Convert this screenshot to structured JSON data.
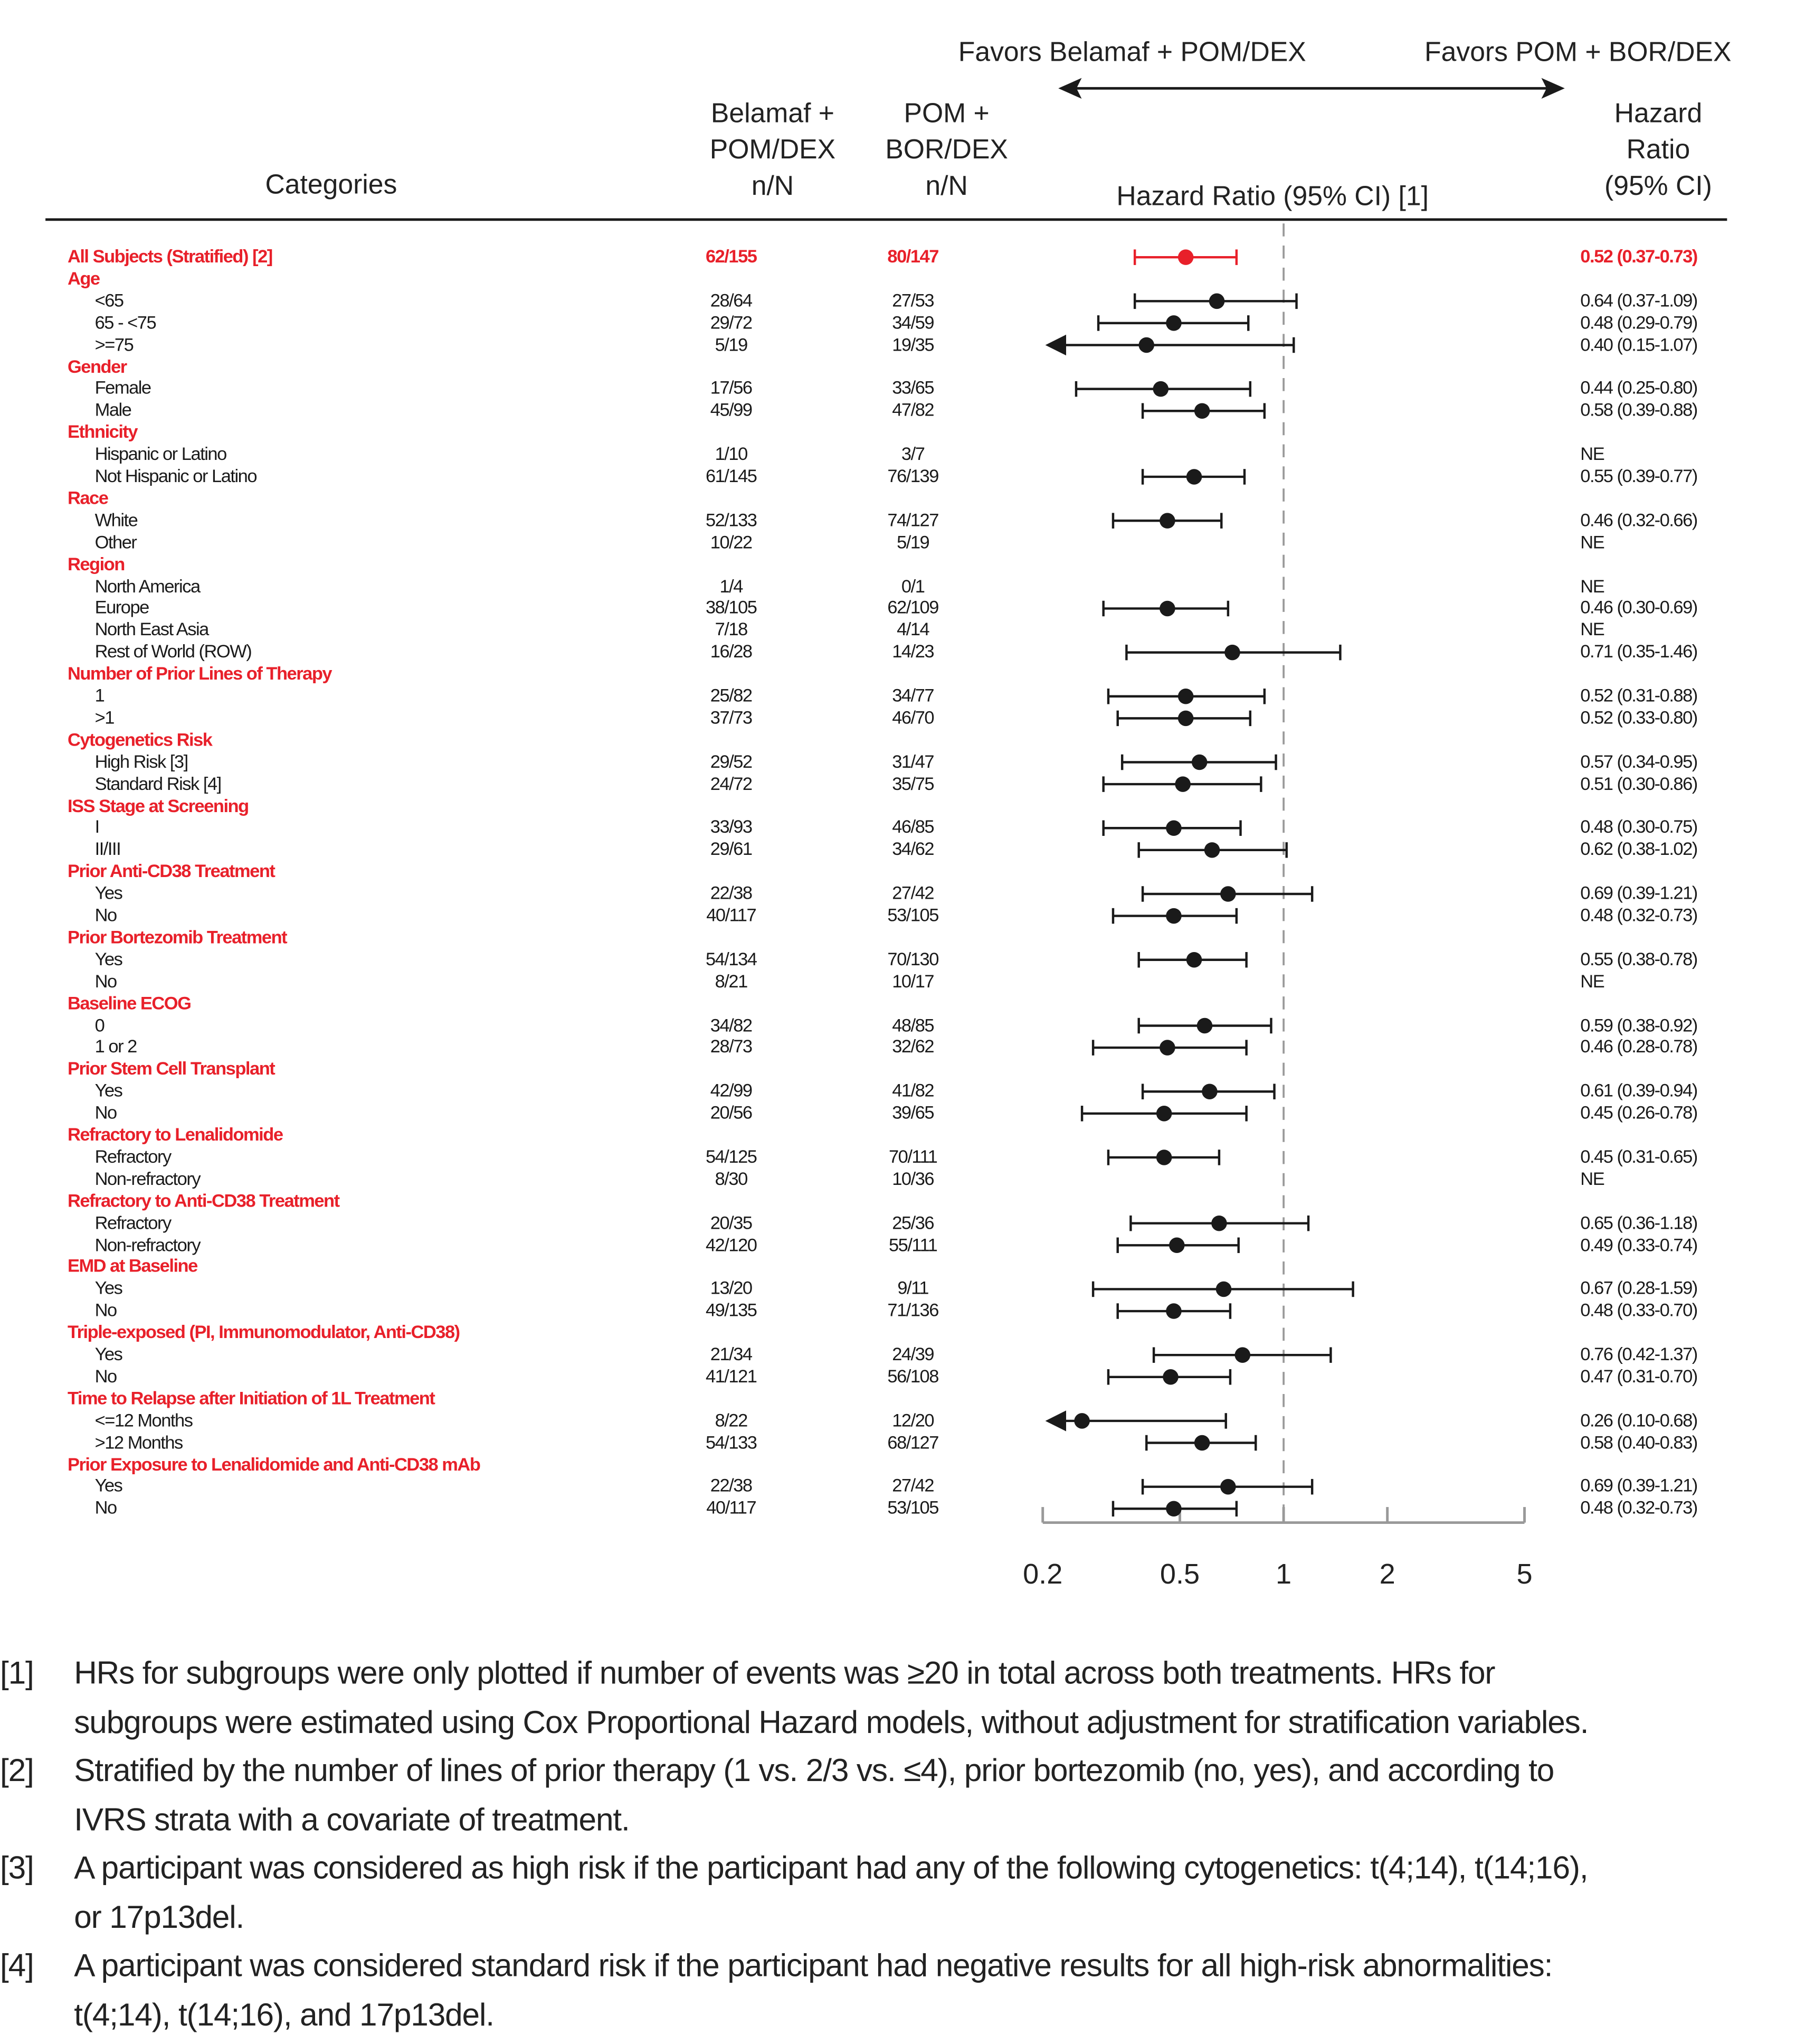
{
  "header": {
    "favors_left": "Favors Belamaf + POM/DEX",
    "favors_right": "Favors POM + BOR/DEX",
    "col_categories": "Categories",
    "col_arm1": [
      "Belamaf +",
      "POM/DEX",
      "n/N"
    ],
    "col_arm2": [
      "POM +",
      "BOR/DEX",
      "n/N"
    ],
    "col_plot": "Hazard Ratio (95% CI) [1]",
    "col_hr": [
      "Hazard",
      "Ratio",
      "(95% CI)"
    ]
  },
  "colors": {
    "accent": "#e8202a",
    "text": "#1a1a1a",
    "axis": "#999999"
  },
  "chart_data": {
    "type": "forest",
    "x_scale": "log",
    "xlim": [
      0.2,
      5
    ],
    "x_ticks": [
      "0.2",
      "0.5",
      "1",
      "2",
      "5"
    ],
    "x_tick_values": [
      0.2,
      0.5,
      1,
      2,
      5
    ],
    "reference_line": 1,
    "rows": [
      {
        "label": "All Subjects (Stratified) [2]",
        "type": "overall",
        "n1": "62/155",
        "n2": "80/147",
        "hr_text": "0.52 (0.37-0.73)",
        "hr": 0.52,
        "lo": 0.37,
        "hi": 0.73
      },
      {
        "label": "Age",
        "type": "group"
      },
      {
        "label": "<65",
        "type": "item",
        "n1": "28/64",
        "n2": "27/53",
        "hr_text": "0.64 (0.37-1.09)",
        "hr": 0.64,
        "lo": 0.37,
        "hi": 1.09
      },
      {
        "label": "65 - <75",
        "type": "item",
        "n1": "29/72",
        "n2": "34/59",
        "hr_text": "0.48 (0.29-0.79)",
        "hr": 0.48,
        "lo": 0.29,
        "hi": 0.79
      },
      {
        "label": ">=75",
        "type": "item",
        "n1": "5/19",
        "n2": "19/35",
        "hr_text": "0.40 (0.15-1.07)",
        "hr": 0.4,
        "lo": 0.15,
        "hi": 1.07
      },
      {
        "label": "Gender",
        "type": "group"
      },
      {
        "label": "Female",
        "type": "item",
        "n1": "17/56",
        "n2": "33/65",
        "hr_text": "0.44 (0.25-0.80)",
        "hr": 0.44,
        "lo": 0.25,
        "hi": 0.8
      },
      {
        "label": "Male",
        "type": "item",
        "n1": "45/99",
        "n2": "47/82",
        "hr_text": "0.58 (0.39-0.88)",
        "hr": 0.58,
        "lo": 0.39,
        "hi": 0.88
      },
      {
        "label": "Ethnicity",
        "type": "group"
      },
      {
        "label": "Hispanic or Latino",
        "type": "item",
        "n1": "1/10",
        "n2": "3/7",
        "hr_text": "NE"
      },
      {
        "label": "Not Hispanic or Latino",
        "type": "item",
        "n1": "61/145",
        "n2": "76/139",
        "hr_text": "0.55 (0.39-0.77)",
        "hr": 0.55,
        "lo": 0.39,
        "hi": 0.77
      },
      {
        "label": "Race",
        "type": "group"
      },
      {
        "label": "White",
        "type": "item",
        "n1": "52/133",
        "n2": "74/127",
        "hr_text": "0.46 (0.32-0.66)",
        "hr": 0.46,
        "lo": 0.32,
        "hi": 0.66
      },
      {
        "label": "Other",
        "type": "item",
        "n1": "10/22",
        "n2": "5/19",
        "hr_text": "NE"
      },
      {
        "label": "Region",
        "type": "group"
      },
      {
        "label": "North America",
        "type": "item",
        "n1": "1/4",
        "n2": "0/1",
        "hr_text": "NE"
      },
      {
        "label": "Europe",
        "type": "item",
        "n1": "38/105",
        "n2": "62/109",
        "hr_text": "0.46 (0.30-0.69)",
        "hr": 0.46,
        "lo": 0.3,
        "hi": 0.69
      },
      {
        "label": "North East Asia",
        "type": "item",
        "n1": "7/18",
        "n2": "4/14",
        "hr_text": "NE"
      },
      {
        "label": "Rest of World (ROW)",
        "type": "item",
        "n1": "16/28",
        "n2": "14/23",
        "hr_text": "0.71 (0.35-1.46)",
        "hr": 0.71,
        "lo": 0.35,
        "hi": 1.46
      },
      {
        "label": "Number of Prior Lines of Therapy",
        "type": "group"
      },
      {
        "label": "1",
        "type": "item",
        "n1": "25/82",
        "n2": "34/77",
        "hr_text": "0.52 (0.31-0.88)",
        "hr": 0.52,
        "lo": 0.31,
        "hi": 0.88
      },
      {
        "label": ">1",
        "type": "item",
        "n1": "37/73",
        "n2": "46/70",
        "hr_text": "0.52 (0.33-0.80)",
        "hr": 0.52,
        "lo": 0.33,
        "hi": 0.8
      },
      {
        "label": "Cytogenetics Risk",
        "type": "group"
      },
      {
        "label": "High Risk [3]",
        "type": "item",
        "n1": "29/52",
        "n2": "31/47",
        "hr_text": "0.57 (0.34-0.95)",
        "hr": 0.57,
        "lo": 0.34,
        "hi": 0.95
      },
      {
        "label": "Standard Risk [4]",
        "type": "item",
        "n1": "24/72",
        "n2": "35/75",
        "hr_text": "0.51 (0.30-0.86)",
        "hr": 0.51,
        "lo": 0.3,
        "hi": 0.86
      },
      {
        "label": "ISS Stage at Screening",
        "type": "group"
      },
      {
        "label": "I",
        "type": "item",
        "n1": "33/93",
        "n2": "46/85",
        "hr_text": "0.48 (0.30-0.75)",
        "hr": 0.48,
        "lo": 0.3,
        "hi": 0.75
      },
      {
        "label": "II/III",
        "type": "item",
        "n1": "29/61",
        "n2": "34/62",
        "hr_text": "0.62 (0.38-1.02)",
        "hr": 0.62,
        "lo": 0.38,
        "hi": 1.02
      },
      {
        "label": "Prior Anti-CD38 Treatment",
        "type": "group"
      },
      {
        "label": "Yes",
        "type": "item",
        "n1": "22/38",
        "n2": "27/42",
        "hr_text": "0.69 (0.39-1.21)",
        "hr": 0.69,
        "lo": 0.39,
        "hi": 1.21
      },
      {
        "label": "No",
        "type": "item",
        "n1": "40/117",
        "n2": "53/105",
        "hr_text": "0.48 (0.32-0.73)",
        "hr": 0.48,
        "lo": 0.32,
        "hi": 0.73
      },
      {
        "label": "Prior Bortezomib Treatment",
        "type": "group"
      },
      {
        "label": "Yes",
        "type": "item",
        "n1": "54/134",
        "n2": "70/130",
        "hr_text": "0.55 (0.38-0.78)",
        "hr": 0.55,
        "lo": 0.38,
        "hi": 0.78
      },
      {
        "label": "No",
        "type": "item",
        "n1": "8/21",
        "n2": "10/17",
        "hr_text": "NE"
      },
      {
        "label": "Baseline ECOG",
        "type": "group"
      },
      {
        "label": "0",
        "type": "item",
        "n1": "34/82",
        "n2": "48/85",
        "hr_text": "0.59 (0.38-0.92)",
        "hr": 0.59,
        "lo": 0.38,
        "hi": 0.92
      },
      {
        "label": "1 or 2",
        "type": "item",
        "n1": "28/73",
        "n2": "32/62",
        "hr_text": "0.46 (0.28-0.78)",
        "hr": 0.46,
        "lo": 0.28,
        "hi": 0.78
      },
      {
        "label": "Prior Stem Cell Transplant",
        "type": "group"
      },
      {
        "label": "Yes",
        "type": "item",
        "n1": "42/99",
        "n2": "41/82",
        "hr_text": "0.61 (0.39-0.94)",
        "hr": 0.61,
        "lo": 0.39,
        "hi": 0.94
      },
      {
        "label": "No",
        "type": "item",
        "n1": "20/56",
        "n2": "39/65",
        "hr_text": "0.45 (0.26-0.78)",
        "hr": 0.45,
        "lo": 0.26,
        "hi": 0.78
      },
      {
        "label": "Refractory to Lenalidomide",
        "type": "group"
      },
      {
        "label": "Refractory",
        "type": "item",
        "n1": "54/125",
        "n2": "70/111",
        "hr_text": "0.45 (0.31-0.65)",
        "hr": 0.45,
        "lo": 0.31,
        "hi": 0.65
      },
      {
        "label": "Non-refractory",
        "type": "item",
        "n1": "8/30",
        "n2": "10/36",
        "hr_text": "NE"
      },
      {
        "label": "Refractory to Anti-CD38 Treatment",
        "type": "group"
      },
      {
        "label": "Refractory",
        "type": "item",
        "n1": "20/35",
        "n2": "25/36",
        "hr_text": "0.65 (0.36-1.18)",
        "hr": 0.65,
        "lo": 0.36,
        "hi": 1.18
      },
      {
        "label": "Non-refractory",
        "type": "item",
        "n1": "42/120",
        "n2": "55/111",
        "hr_text": "0.49 (0.33-0.74)",
        "hr": 0.49,
        "lo": 0.33,
        "hi": 0.74
      },
      {
        "label": "EMD at Baseline",
        "type": "group"
      },
      {
        "label": "Yes",
        "type": "item",
        "n1": "13/20",
        "n2": "9/11",
        "hr_text": "0.67 (0.28-1.59)",
        "hr": 0.67,
        "lo": 0.28,
        "hi": 1.59
      },
      {
        "label": "No",
        "type": "item",
        "n1": "49/135",
        "n2": "71/136",
        "hr_text": "0.48 (0.33-0.70)",
        "hr": 0.48,
        "lo": 0.33,
        "hi": 0.7
      },
      {
        "label": "Triple-exposed (PI, Immunomodulator, Anti-CD38)",
        "type": "group"
      },
      {
        "label": "Yes",
        "type": "item",
        "n1": "21/34",
        "n2": "24/39",
        "hr_text": "0.76 (0.42-1.37)",
        "hr": 0.76,
        "lo": 0.42,
        "hi": 1.37
      },
      {
        "label": "No",
        "type": "item",
        "n1": "41/121",
        "n2": "56/108",
        "hr_text": "0.47 (0.31-0.70)",
        "hr": 0.47,
        "lo": 0.31,
        "hi": 0.7
      },
      {
        "label": "Time to Relapse after Initiation of 1L Treatment",
        "type": "group"
      },
      {
        "label": "<=12 Months",
        "type": "item",
        "n1": "8/22",
        "n2": "12/20",
        "hr_text": "0.26 (0.10-0.68)",
        "hr": 0.26,
        "lo": 0.1,
        "hi": 0.68
      },
      {
        "label": ">12 Months",
        "type": "item",
        "n1": "54/133",
        "n2": "68/127",
        "hr_text": "0.58 (0.40-0.83)",
        "hr": 0.58,
        "lo": 0.4,
        "hi": 0.83
      },
      {
        "label": "Prior Exposure to Lenalidomide and Anti-CD38 mAb",
        "type": "group"
      },
      {
        "label": "Yes",
        "type": "item",
        "n1": "22/38",
        "n2": "27/42",
        "hr_text": "0.69 (0.39-1.21)",
        "hr": 0.69,
        "lo": 0.39,
        "hi": 1.21
      },
      {
        "label": "No",
        "type": "item",
        "n1": "40/117",
        "n2": "53/105",
        "hr_text": "0.48 (0.32-0.73)",
        "hr": 0.48,
        "lo": 0.32,
        "hi": 0.73
      }
    ]
  },
  "footnotes": [
    {
      "label": "[1]",
      "lines": [
        "HRs for subgroups were only plotted if number of events was ≥20 in total across both treatments. HRs for",
        "subgroups were estimated using Cox Proportional Hazard models, without adjustment for stratification variables."
      ]
    },
    {
      "label": "[2]",
      "lines": [
        "Stratified by the number of lines of prior therapy (1 vs. 2/3 vs. ≤4), prior bortezomib (no, yes), and according to",
        "IVRS strata with a covariate of treatment."
      ]
    },
    {
      "label": "[3]",
      "lines": [
        "A participant was considered as high risk if the participant had any of the following cytogenetics: t(4;14), t(14;16),",
        "or 17p13del."
      ]
    },
    {
      "label": "[4]",
      "lines": [
        "A participant was considered standard risk if the participant had negative results for all high-risk abnormalities:",
        "t(4;14), t(14;16), and 17p13del."
      ]
    }
  ]
}
